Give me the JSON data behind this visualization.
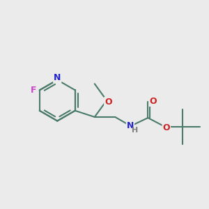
{
  "background_color": "#ebebeb",
  "bond_color": "#4a7a6a",
  "bond_width": 1.5,
  "atom_colors": {
    "F": "#cc44cc",
    "N": "#2222cc",
    "O": "#cc2222",
    "H": "#808080",
    "C": "#4a7a6a"
  },
  "font_size": 9,
  "fig_width": 3.0,
  "fig_height": 3.0,
  "dpi": 100,
  "xlim": [
    -2.2,
    2.8
  ],
  "ylim": [
    -1.5,
    1.5
  ]
}
